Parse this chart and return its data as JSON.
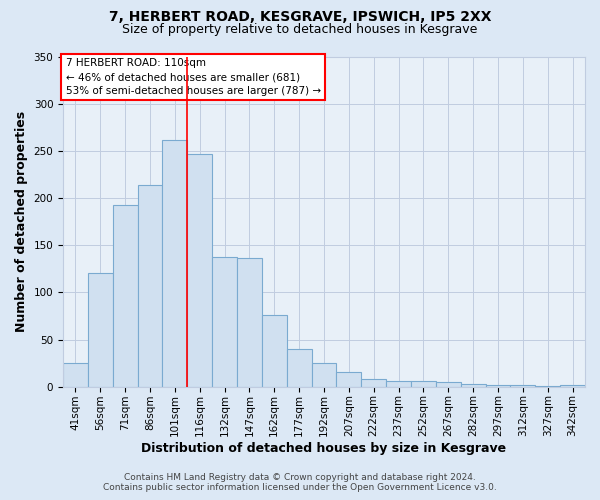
{
  "title": "7, HERBERT ROAD, KESGRAVE, IPSWICH, IP5 2XX",
  "subtitle": "Size of property relative to detached houses in Kesgrave",
  "xlabel": "Distribution of detached houses by size in Kesgrave",
  "ylabel": "Number of detached properties",
  "bar_labels": [
    "41sqm",
    "56sqm",
    "71sqm",
    "86sqm",
    "101sqm",
    "116sqm",
    "132sqm",
    "147sqm",
    "162sqm",
    "177sqm",
    "192sqm",
    "207sqm",
    "222sqm",
    "237sqm",
    "252sqm",
    "267sqm",
    "282sqm",
    "297sqm",
    "312sqm",
    "327sqm",
    "342sqm"
  ],
  "bar_values": [
    25,
    120,
    193,
    214,
    262,
    247,
    137,
    136,
    76,
    40,
    25,
    16,
    8,
    6,
    6,
    5,
    3,
    2,
    2,
    1,
    2
  ],
  "bar_color": "#d0e0f0",
  "bar_edge_color": "#7aaad0",
  "ylim": [
    0,
    350
  ],
  "yticks": [
    0,
    50,
    100,
    150,
    200,
    250,
    300,
    350
  ],
  "vline_color": "red",
  "vline_x": 4.5,
  "annotation_title": "7 HERBERT ROAD: 110sqm",
  "annotation_line1": "← 46% of detached houses are smaller (681)",
  "annotation_line2": "53% of semi-detached houses are larger (787) →",
  "annotation_box_color": "white",
  "annotation_box_edge": "red",
  "footer_line1": "Contains HM Land Registry data © Crown copyright and database right 2024.",
  "footer_line2": "Contains public sector information licensed under the Open Government Licence v3.0.",
  "bg_color": "#dce8f5",
  "plot_bg_color": "#e8f0f8",
  "grid_color": "#c0cce0",
  "title_fontsize": 10,
  "subtitle_fontsize": 9,
  "axis_label_fontsize": 9,
  "tick_fontsize": 7.5,
  "annotation_fontsize": 7.5,
  "footer_fontsize": 6.5
}
